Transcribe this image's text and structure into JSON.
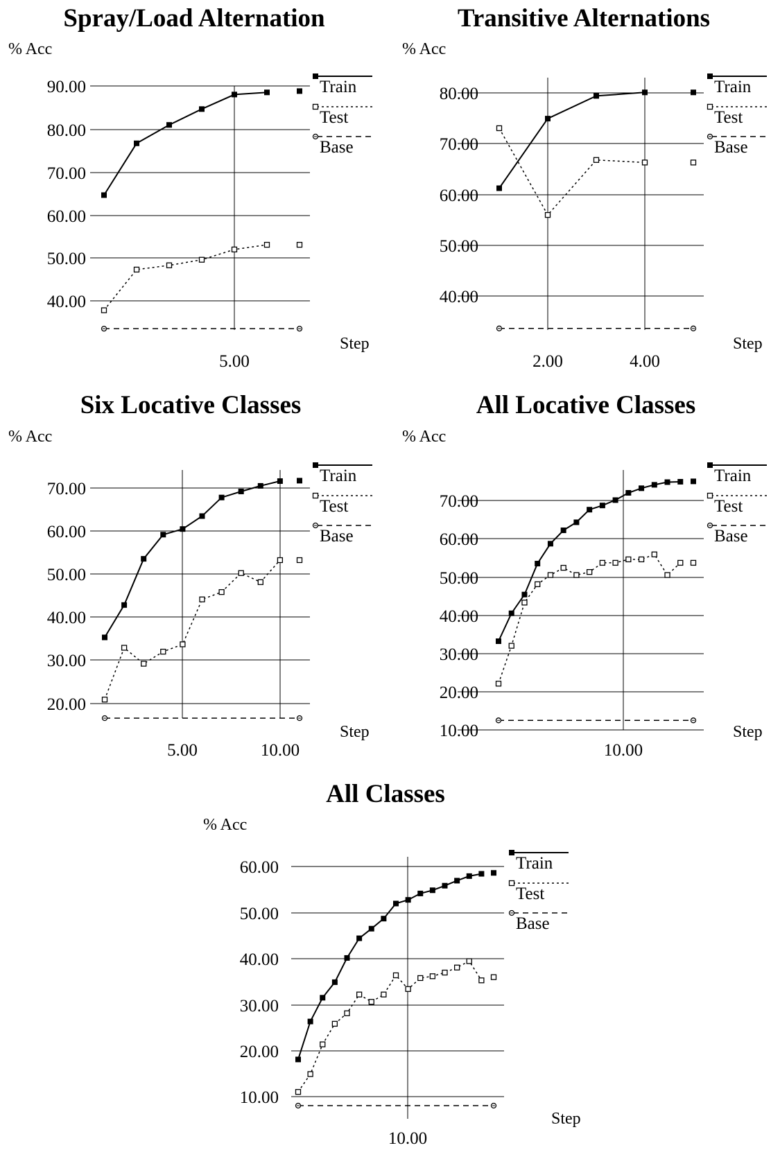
{
  "chart_data": [
    {
      "type": "line",
      "title": "Spray/Load Alternation",
      "ylabel": "% Acc",
      "xlabel": "Step",
      "ylim": [
        33,
        90
      ],
      "xlim": [
        1,
        7
      ],
      "yticks": [
        "40.00",
        "50.00",
        "60.00",
        "70.00",
        "80.00",
        "90.00"
      ],
      "xticks": [
        "5.00"
      ],
      "legend": [
        "Train",
        "Test",
        "Base"
      ],
      "legend_position": "right",
      "series": [
        {
          "name": "Train",
          "x": [
            1,
            2,
            3,
            4,
            5,
            6,
            7
          ],
          "values": [
            64.5,
            76.6,
            80.9,
            84.6,
            88.0,
            88.5,
            88.8
          ]
        },
        {
          "name": "Test",
          "x": [
            1,
            2,
            3,
            4,
            5,
            6,
            7
          ],
          "values": [
            37.6,
            47.1,
            48.1,
            49.4,
            51.8,
            52.9,
            52.9
          ]
        },
        {
          "name": "Base",
          "x": [
            1,
            7
          ],
          "values": [
            33.3,
            33.3
          ]
        }
      ]
    },
    {
      "type": "line",
      "title": "Transitive Alternations",
      "ylabel": "% Acc",
      "xlabel": "Step",
      "ylim": [
        33,
        80
      ],
      "xlim": [
        1,
        5
      ],
      "yticks": [
        "40.00",
        "50.00",
        "60.00",
        "70.00",
        "80.00"
      ],
      "xticks": [
        "2.00",
        "4.00"
      ],
      "legend": [
        "Train",
        "Test",
        "Base"
      ],
      "legend_position": "right",
      "series": [
        {
          "name": "Train",
          "x": [
            1,
            2,
            3,
            4,
            5
          ],
          "values": [
            61.1,
            74.9,
            79.4,
            80.1,
            80.1
          ]
        },
        {
          "name": "Test",
          "x": [
            1,
            2,
            3,
            4,
            5
          ],
          "values": [
            73.0,
            55.8,
            66.7,
            66.2,
            66.2
          ]
        },
        {
          "name": "Base",
          "x": [
            1,
            5
          ],
          "values": [
            33.3,
            33.3
          ]
        }
      ]
    },
    {
      "type": "line",
      "title": "Six Locative Classes",
      "ylabel": "% Acc",
      "xlabel": "Step",
      "ylim": [
        16.7,
        70
      ],
      "xlim": [
        1,
        11
      ],
      "yticks": [
        "20.00",
        "30.00",
        "40.00",
        "50.00",
        "60.00",
        "70.00"
      ],
      "xticks": [
        "5.00",
        "10.00"
      ],
      "legend": [
        "Train",
        "Test",
        "Base"
      ],
      "legend_position": "right",
      "series": [
        {
          "name": "Train",
          "x": [
            1,
            2,
            3,
            4,
            5,
            6,
            7,
            8,
            9,
            10,
            11
          ],
          "values": [
            35.4,
            42.9,
            53.6,
            59.2,
            60.5,
            63.5,
            67.8,
            69.2,
            70.5,
            71.6,
            71.7
          ]
        },
        {
          "name": "Test",
          "x": [
            1,
            2,
            3,
            4,
            5,
            6,
            7,
            8,
            9,
            10,
            11
          ],
          "values": [
            21.0,
            33.0,
            29.3,
            32.1,
            33.8,
            44.2,
            45.9,
            50.3,
            48.2,
            53.3,
            53.3
          ]
        },
        {
          "name": "Base",
          "x": [
            1,
            11
          ],
          "values": [
            16.7,
            16.7
          ]
        }
      ]
    },
    {
      "type": "line",
      "title": "All Locative Classes",
      "ylabel": "% Acc",
      "xlabel": "Step",
      "ylim": [
        10,
        70
      ],
      "xlim": [
        1,
        15
      ],
      "yticks": [
        "10.00",
        "20.00",
        "30.00",
        "40.00",
        "50.00",
        "60.00",
        "70.00"
      ],
      "xticks": [
        "10.00"
      ],
      "legend": [
        "Train",
        "Test",
        "Base"
      ],
      "legend_position": "right",
      "series": [
        {
          "name": "Train",
          "x": [
            1,
            2,
            3,
            4,
            5,
            6,
            7,
            8,
            9,
            10,
            11,
            12,
            13,
            14,
            15,
            16
          ],
          "values": [
            33.2,
            40.5,
            45.4,
            53.5,
            58.7,
            62.2,
            64.3,
            67.6,
            68.7,
            70.1,
            72.0,
            73.2,
            74.1,
            74.8,
            74.9,
            75.0
          ]
        },
        {
          "name": "Test",
          "x": [
            1,
            2,
            3,
            4,
            5,
            6,
            7,
            8,
            9,
            10,
            11,
            12,
            13,
            14,
            15,
            16
          ],
          "values": [
            22.1,
            32.0,
            43.3,
            48.1,
            50.5,
            52.4,
            50.5,
            51.3,
            53.7,
            53.7,
            54.6,
            54.6,
            55.9,
            50.5,
            53.7,
            53.7
          ]
        },
        {
          "name": "Base",
          "x": [
            1,
            16
          ],
          "values": [
            12.5,
            12.5
          ]
        }
      ]
    },
    {
      "type": "line",
      "title": "All Classes",
      "ylabel": "% Acc",
      "xlabel": "Step",
      "ylim": [
        7.7,
        60
      ],
      "xlim": [
        1,
        16
      ],
      "yticks": [
        "10.00",
        "20.00",
        "30.00",
        "40.00",
        "50.00",
        "60.00"
      ],
      "xticks": [
        "10.00"
      ],
      "legend": [
        "Train",
        "Test",
        "Base"
      ],
      "legend_position": "right",
      "series": [
        {
          "name": "Train",
          "x": [
            1,
            2,
            3,
            4,
            5,
            6,
            7,
            8,
            9,
            10,
            11,
            12,
            13,
            14,
            15,
            16,
            17
          ],
          "values": [
            17.8,
            26.1,
            31.3,
            34.7,
            40.0,
            44.3,
            46.4,
            48.6,
            51.9,
            52.7,
            54.1,
            54.8,
            55.8,
            56.9,
            57.9,
            58.4,
            58.6
          ]
        },
        {
          "name": "Test",
          "x": [
            1,
            2,
            3,
            4,
            5,
            6,
            7,
            8,
            9,
            10,
            11,
            12,
            13,
            14,
            15,
            16,
            17
          ],
          "values": [
            10.7,
            14.6,
            21.1,
            25.6,
            27.9,
            32.0,
            30.4,
            32.0,
            36.2,
            33.2,
            35.6,
            36.0,
            36.8,
            37.9,
            39.3,
            35.1,
            35.8
          ]
        },
        {
          "name": "Base",
          "x": [
            1,
            17
          ],
          "values": [
            7.7,
            7.7
          ]
        }
      ]
    }
  ]
}
